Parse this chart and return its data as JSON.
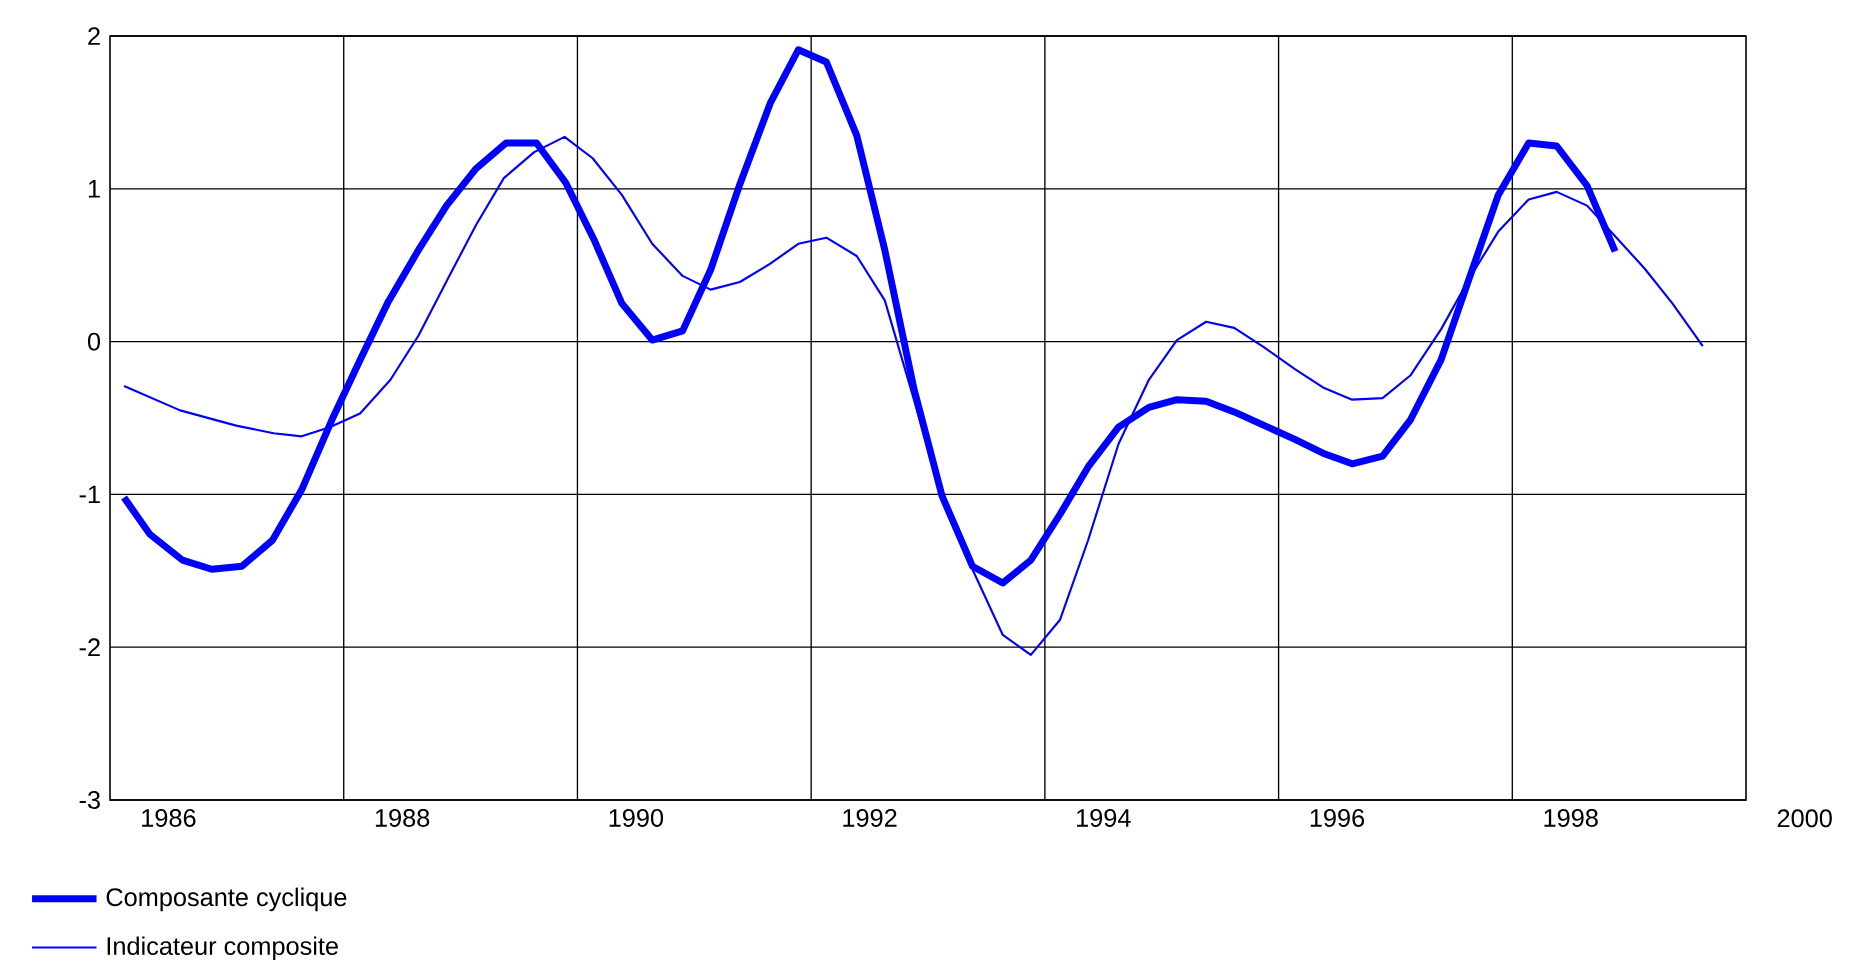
{
  "chart_data": {
    "type": "line",
    "xlim": [
      1985.5,
      1999.5
    ],
    "xticks": [
      1986,
      1988,
      1990,
      1992,
      1994,
      1996,
      1998
    ],
    "annotations": [
      "2000"
    ],
    "ylim": [
      -3,
      2
    ],
    "yticks": [
      -3,
      -2,
      -1,
      0,
      1,
      2
    ],
    "grid": true,
    "legend": "bottom left",
    "marker": "none",
    "line_style": "solid",
    "series": [
      {
        "name": "Composante cyclique",
        "color": "#0000ff",
        "x": [
          1985.62,
          1985.84,
          1986.12,
          1986.37,
          1986.63,
          1986.89,
          1987.14,
          1987.4,
          1987.64,
          1987.88,
          1988.14,
          1988.38,
          1988.63,
          1988.89,
          1989.15,
          1989.4,
          1989.64,
          1989.88,
          1990.14,
          1990.4,
          1990.64,
          1990.89,
          1991.15,
          1991.39,
          1991.63,
          1991.89,
          1992.13,
          1992.38,
          1992.62,
          1992.88,
          1993.14,
          1993.38,
          1993.63,
          1993.87,
          1994.13,
          1994.39,
          1994.63,
          1994.88,
          1995.12,
          1995.38,
          1995.64,
          1995.88,
          1996.13,
          1996.39,
          1996.63,
          1996.89,
          1997.13,
          1997.38,
          1997.64,
          1997.88,
          1998.14,
          1998.38
        ],
        "values": [
          -1.02,
          -1.26,
          -1.43,
          -1.49,
          -1.47,
          -1.3,
          -0.97,
          -0.51,
          -0.12,
          0.26,
          0.6,
          0.89,
          1.13,
          1.3,
          1.3,
          1.04,
          0.67,
          0.25,
          0.01,
          0.07,
          0.47,
          1.03,
          1.56,
          1.91,
          1.83,
          1.35,
          0.6,
          -0.31,
          -1.01,
          -1.47,
          -1.58,
          -1.43,
          -1.13,
          -0.82,
          -0.56,
          -0.43,
          -0.38,
          -0.39,
          -0.46,
          -0.55,
          -0.64,
          -0.73,
          -0.8,
          -0.75,
          -0.51,
          -0.12,
          0.41,
          0.96,
          1.3,
          1.28,
          1.02,
          0.59
        ]
      },
      {
        "name": "Indicateur composite",
        "color": "#0000ff",
        "x": [
          1985.62,
          1986.1,
          1986.58,
          1986.9,
          1987.14,
          1987.38,
          1987.64,
          1987.9,
          1988.14,
          1988.39,
          1988.63,
          1988.87,
          1989.13,
          1989.39,
          1989.63,
          1989.88,
          1990.14,
          1990.4,
          1990.64,
          1990.89,
          1991.15,
          1991.39,
          1991.63,
          1991.89,
          1992.13,
          1992.38,
          1992.62,
          1992.88,
          1993.14,
          1993.38,
          1993.63,
          1993.87,
          1994.13,
          1994.39,
          1994.63,
          1994.88,
          1995.12,
          1995.38,
          1995.64,
          1995.88,
          1996.13,
          1996.39,
          1996.63,
          1996.89,
          1997.13,
          1997.38,
          1997.64,
          1997.88,
          1998.14,
          1998.38,
          1998.63,
          1998.87,
          1999.13
        ],
        "values": [
          -0.29,
          -0.45,
          -0.55,
          -0.6,
          -0.62,
          -0.56,
          -0.47,
          -0.25,
          0.04,
          0.41,
          0.76,
          1.07,
          1.24,
          1.34,
          1.2,
          0.96,
          0.64,
          0.43,
          0.34,
          0.39,
          0.51,
          0.64,
          0.68,
          0.56,
          0.27,
          -0.38,
          -1.03,
          -1.49,
          -1.92,
          -2.05,
          -1.82,
          -1.3,
          -0.67,
          -0.25,
          0.01,
          0.13,
          0.09,
          -0.04,
          -0.18,
          -0.3,
          -0.38,
          -0.37,
          -0.22,
          0.08,
          0.41,
          0.72,
          0.93,
          0.98,
          0.89,
          0.69,
          0.48,
          0.25,
          -0.03
        ]
      }
    ]
  }
}
